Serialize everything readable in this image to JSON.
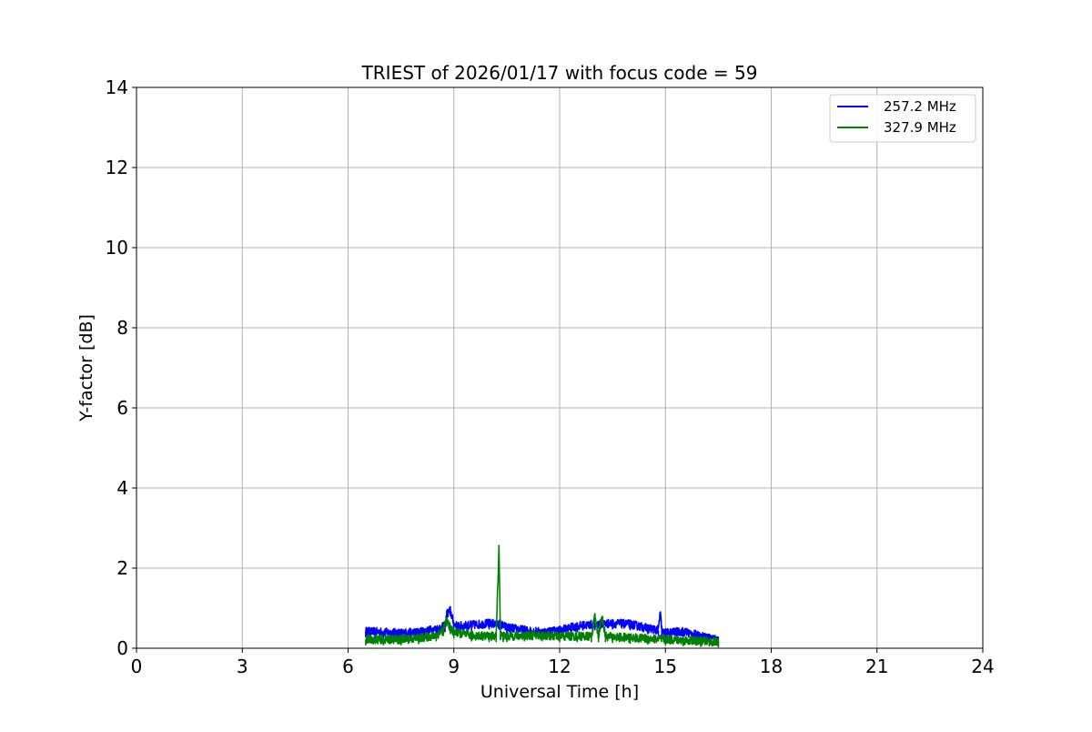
{
  "chart_data": {
    "type": "line",
    "title": "TRIEST of 2026/01/17 with focus code = 59",
    "xlabel": "Universal Time [h]",
    "ylabel": "Y-factor [dB]",
    "xlim": [
      0,
      24
    ],
    "ylim": [
      0,
      14
    ],
    "xticks": [
      0,
      3,
      6,
      9,
      12,
      15,
      18,
      21,
      24
    ],
    "yticks": [
      0,
      2,
      4,
      6,
      8,
      10,
      12,
      14
    ],
    "grid": true,
    "legend_position": "top-right",
    "series": [
      {
        "name": "257.2 MHz",
        "color": "#0000ff",
        "x": [
          6.5,
          7.0,
          7.5,
          8.0,
          8.5,
          8.75,
          8.8,
          8.9,
          9.0,
          9.1,
          9.5,
          10.0,
          10.3,
          10.5,
          11.0,
          11.5,
          12.0,
          12.5,
          13.0,
          13.5,
          14.0,
          14.5,
          14.8,
          14.85,
          14.9,
          15.0,
          15.5,
          16.0,
          16.5
        ],
        "y": [
          0.42,
          0.4,
          0.38,
          0.4,
          0.48,
          0.55,
          0.85,
          0.95,
          0.6,
          0.55,
          0.58,
          0.62,
          0.6,
          0.52,
          0.45,
          0.4,
          0.45,
          0.55,
          0.6,
          0.62,
          0.6,
          0.5,
          0.45,
          0.9,
          0.4,
          0.38,
          0.42,
          0.3,
          0.22
        ]
      },
      {
        "name": "327.9 MHz",
        "color": "#008000",
        "x": [
          6.5,
          7.0,
          7.5,
          8.0,
          8.5,
          8.7,
          8.8,
          8.9,
          9.0,
          9.5,
          10.0,
          10.2,
          10.28,
          10.32,
          10.4,
          10.5,
          11.0,
          11.5,
          12.0,
          12.5,
          12.9,
          13.0,
          13.1,
          13.2,
          13.3,
          13.5,
          14.0,
          14.5,
          15.0,
          15.5,
          16.0,
          16.5
        ],
        "y": [
          0.22,
          0.22,
          0.22,
          0.25,
          0.32,
          0.45,
          0.7,
          0.5,
          0.4,
          0.32,
          0.3,
          0.3,
          2.55,
          0.35,
          0.3,
          0.3,
          0.32,
          0.32,
          0.3,
          0.3,
          0.3,
          0.78,
          0.3,
          0.8,
          0.3,
          0.28,
          0.26,
          0.24,
          0.22,
          0.2,
          0.18,
          0.15
        ]
      }
    ]
  }
}
